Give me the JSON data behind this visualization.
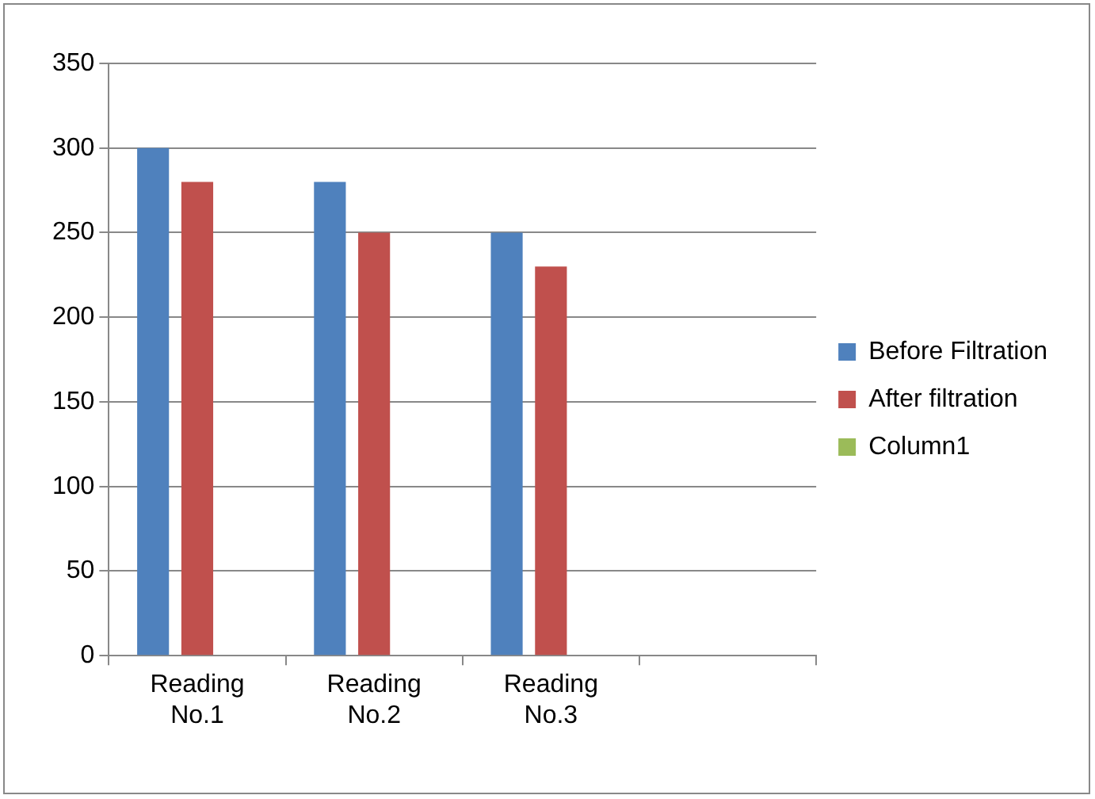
{
  "chart_data": {
    "type": "bar",
    "categories": [
      "Reading No.1",
      "Reading No.2",
      "Reading No.3",
      null
    ],
    "series": [
      {
        "name": "Before Filtration",
        "color": "#4f81bd",
        "values": [
          300,
          280,
          250,
          null
        ]
      },
      {
        "name": "After filtration",
        "color": "#c0504d",
        "values": [
          280,
          250,
          230,
          null
        ]
      },
      {
        "name": "Column1",
        "color": "#9bbb59",
        "values": [
          null,
          null,
          null,
          null
        ]
      }
    ],
    "ylim": [
      0,
      350
    ],
    "yticks": [
      0,
      50,
      100,
      150,
      200,
      250,
      300,
      350
    ],
    "grid": "y",
    "legend": "right"
  }
}
